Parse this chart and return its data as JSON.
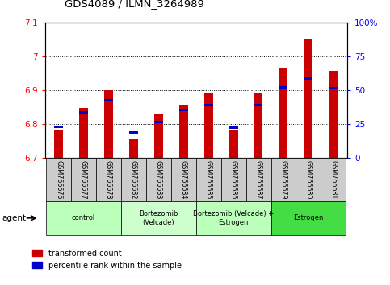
{
  "title": "GDS4089 / ILMN_3264989",
  "samples": [
    "GSM766676",
    "GSM766677",
    "GSM766678",
    "GSM766682",
    "GSM766683",
    "GSM766684",
    "GSM766685",
    "GSM766686",
    "GSM766687",
    "GSM766679",
    "GSM766680",
    "GSM766681"
  ],
  "red_values": [
    6.782,
    6.848,
    6.902,
    6.757,
    6.832,
    6.858,
    6.893,
    6.781,
    6.893,
    6.968,
    7.05,
    6.958
  ],
  "blue_values": [
    6.793,
    6.836,
    6.872,
    6.775,
    6.807,
    6.843,
    6.858,
    6.791,
    6.858,
    6.91,
    6.935,
    6.908
  ],
  "ylim_left": [
    6.7,
    7.1
  ],
  "yticks_left": [
    6.7,
    6.8,
    6.9,
    7.0,
    7.1
  ],
  "ytick_labels_left": [
    "6.7",
    "6.8",
    "6.9",
    "7",
    "7.1"
  ],
  "yticks_right": [
    0,
    25,
    50,
    75,
    100
  ],
  "ytick_labels_right": [
    "0",
    "25",
    "50",
    "75",
    "100%"
  ],
  "groups": [
    {
      "label": "control",
      "indices": [
        0,
        1,
        2
      ],
      "color": "#bbffbb"
    },
    {
      "label": "Bortezomib\n(Velcade)",
      "indices": [
        3,
        4,
        5
      ],
      "color": "#ccffcc"
    },
    {
      "label": "Bortezomib (Velcade) +\nEstrogen",
      "indices": [
        6,
        7,
        8
      ],
      "color": "#bbffbb"
    },
    {
      "label": "Estrogen",
      "indices": [
        9,
        10,
        11
      ],
      "color": "#44dd44"
    }
  ],
  "red_color": "#cc0000",
  "blue_color": "#0000cc",
  "base_value": 6.7,
  "bar_width": 0.35,
  "grid_yticks": [
    6.8,
    6.9,
    7.0
  ],
  "bg_color_plot": "#ffffff",
  "xtick_bg": "#cccccc"
}
